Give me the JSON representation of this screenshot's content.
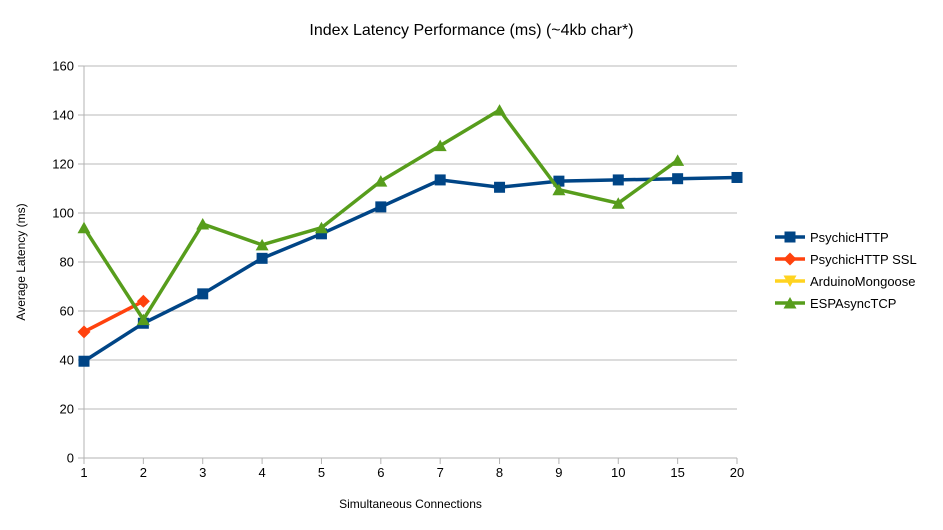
{
  "chart": {
    "title": "Index Latency Performance (ms) (~4kb char*)",
    "x_axis_title": "Simultaneous Connections",
    "y_axis_title": "Average Latency (ms)"
  },
  "chart_data": {
    "type": "line",
    "title": "Index Latency Performance (ms) (~4kb char*)",
    "xlabel": "Simultaneous Connections",
    "ylabel": "Average Latency (ms)",
    "categories": [
      "1",
      "2",
      "3",
      "4",
      "5",
      "6",
      "7",
      "8",
      "9",
      "10",
      "15",
      "20"
    ],
    "ylim": [
      0,
      160
    ],
    "ytick_step": 20,
    "grid": true,
    "legend_position": "right",
    "series": [
      {
        "name": "PsychicHTTP",
        "color": "#004586",
        "marker": "square",
        "values": [
          39.5,
          55,
          67,
          81.5,
          91.5,
          102.5,
          113.5,
          110.5,
          113,
          113.5,
          114,
          114.5
        ]
      },
      {
        "name": "PsychicHTTP SSL",
        "color": "#ff420e",
        "marker": "diamond",
        "values": [
          51.5,
          64,
          null,
          null,
          null,
          null,
          null,
          null,
          null,
          null,
          null,
          null
        ]
      },
      {
        "name": "ArduinoMongoose",
        "color": "#ffd320",
        "marker": "triangle-down",
        "values": [
          null,
          null,
          null,
          null,
          null,
          null,
          null,
          null,
          null,
          null,
          null,
          null
        ]
      },
      {
        "name": "ESPAsyncTCP",
        "color": "#579d1c",
        "marker": "triangle-up",
        "values": [
          94,
          56.5,
          95.5,
          87,
          94,
          113,
          127.5,
          142,
          109.5,
          104,
          121.5,
          null
        ]
      }
    ]
  },
  "style": {
    "grid_color": "#b8b8b8",
    "axis_color": "#b3b3b3",
    "text_color": "#000000",
    "background": "#ffffff"
  }
}
